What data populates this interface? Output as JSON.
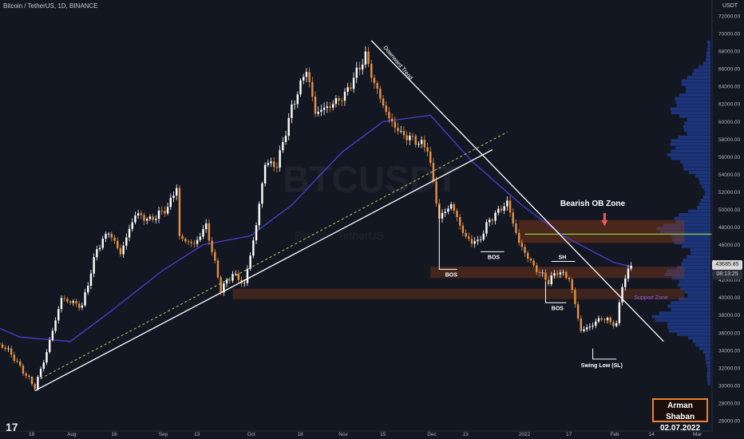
{
  "header": {
    "symbol": "Bitcoin / TetherUS, 1D, BINANCE",
    "currency": "USDT"
  },
  "signature": {
    "author": "Arman Shaban",
    "date": "02.07.2022"
  },
  "price_tags": {
    "last": "43685.85",
    "countdown": "08:13:25"
  },
  "logo": "17",
  "chart_data": {
    "type": "candlestick",
    "title": "",
    "y_range": [
      26000,
      74000
    ],
    "y_ticks": [
      26000,
      28000,
      30000,
      32000,
      34000,
      36000,
      38000,
      40000,
      42000,
      44000,
      46000,
      48000,
      50000,
      52000,
      54000,
      56000,
      58000,
      60000,
      62000,
      64000,
      66000,
      68000,
      70000,
      72000
    ],
    "x_ticks": [
      {
        "label": "19",
        "date": "2021-07-19"
      },
      {
        "label": "Aug",
        "date": "2021-08-01"
      },
      {
        "label": "16",
        "date": "2021-08-16"
      },
      {
        "label": "Sep",
        "date": "2021-09-01"
      },
      {
        "label": "13",
        "date": "2021-09-13"
      },
      {
        "label": "Oct",
        "date": "2021-10-01"
      },
      {
        "label": "18",
        "date": "2021-10-18"
      },
      {
        "label": "Nov",
        "date": "2021-11-01"
      },
      {
        "label": "15",
        "date": "2021-11-15"
      },
      {
        "label": "Dec",
        "date": "2021-12-01"
      },
      {
        "label": "13",
        "date": "2021-12-13"
      },
      {
        "label": "2022",
        "date": "2022-01-01"
      },
      {
        "label": "17",
        "date": "2022-01-17"
      },
      {
        "label": "Feb",
        "date": "2022-02-01"
      },
      {
        "label": "14",
        "date": "2022-02-14"
      },
      {
        "label": "Mar",
        "date": "2022-03-01"
      }
    ],
    "anchors": [
      [
        "2021-07-06",
        35000
      ],
      [
        "2021-07-11",
        34000
      ],
      [
        "2021-07-16",
        31600
      ],
      [
        "2021-07-20",
        29800
      ],
      [
        "2021-07-24",
        33800
      ],
      [
        "2021-07-29",
        39900
      ],
      [
        "2021-08-05",
        39000
      ],
      [
        "2021-08-10",
        45500
      ],
      [
        "2021-08-14",
        47500
      ],
      [
        "2021-08-18",
        45000
      ],
      [
        "2021-08-23",
        49500
      ],
      [
        "2021-08-28",
        48800
      ],
      [
        "2021-09-03",
        50200
      ],
      [
        "2021-09-06",
        52600
      ],
      [
        "2021-09-07",
        46800
      ],
      [
        "2021-09-12",
        46000
      ],
      [
        "2021-09-16",
        48200
      ],
      [
        "2021-09-21",
        40900
      ],
      [
        "2021-09-25",
        42700
      ],
      [
        "2021-09-29",
        41500
      ],
      [
        "2021-10-03",
        48200
      ],
      [
        "2021-10-06",
        55300
      ],
      [
        "2021-10-10",
        55000
      ],
      [
        "2021-10-15",
        61500
      ],
      [
        "2021-10-20",
        66000
      ],
      [
        "2021-10-23",
        61000
      ],
      [
        "2021-10-28",
        61800
      ],
      [
        "2021-11-02",
        63000
      ],
      [
        "2021-11-09",
        67500
      ],
      [
        "2021-11-12",
        64300
      ],
      [
        "2021-11-17",
        60300
      ],
      [
        "2021-11-21",
        58600
      ],
      [
        "2021-11-25",
        58000
      ],
      [
        "2021-11-30",
        57000
      ],
      [
        "2021-12-04",
        49000
      ],
      [
        "2021-12-08",
        50600
      ],
      [
        "2021-12-13",
        46700
      ],
      [
        "2021-12-17",
        46200
      ],
      [
        "2021-12-21",
        48800
      ],
      [
        "2021-12-27",
        50800
      ],
      [
        "2021-12-31",
        46200
      ],
      [
        "2022-01-05",
        43500
      ],
      [
        "2022-01-10",
        41800
      ],
      [
        "2022-01-13",
        43000
      ],
      [
        "2022-01-17",
        42200
      ],
      [
        "2022-01-21",
        36200
      ],
      [
        "2022-01-24",
        36700
      ],
      [
        "2022-01-28",
        37700
      ],
      [
        "2022-02-02",
        36900
      ],
      [
        "2022-02-04",
        41500
      ],
      [
        "2022-02-07",
        43685
      ]
    ],
    "moving_average": [
      [
        "2021-07-01",
        37500
      ],
      [
        "2021-07-15",
        35500
      ],
      [
        "2021-08-01",
        35000
      ],
      [
        "2021-08-15",
        38500
      ],
      [
        "2021-09-01",
        43000
      ],
      [
        "2021-09-15",
        46000
      ],
      [
        "2021-10-01",
        47000
      ],
      [
        "2021-10-15",
        50500
      ],
      [
        "2021-11-01",
        56500
      ],
      [
        "2021-11-15",
        60000
      ],
      [
        "2021-12-01",
        60700
      ],
      [
        "2021-12-15",
        55500
      ],
      [
        "2022-01-01",
        50500
      ],
      [
        "2022-01-15",
        47000
      ],
      [
        "2022-02-01",
        44000
      ],
      [
        "2022-02-07",
        43500
      ]
    ],
    "annotations": {
      "watermark": "BTCUSDT",
      "watermark_sub": "Bitcoin / TetherUS",
      "downward_trend": "Downward Trend",
      "bearish_ob_zone": "Bearish OB Zone",
      "support_zone": "Support Zone",
      "sh": "SH",
      "bos_1": "BOS",
      "bos_2": "BOS",
      "bos_3": "BOS",
      "swing_low": "Swing Low (SL)"
    },
    "colors": {
      "background": "#131722",
      "up": "#ffffff",
      "down": "#e8913f",
      "moving_average": "#4b3fd1",
      "zone": "#8c3b13",
      "green_line": "#8bd43d",
      "volume_profile": "#1e3a8a"
    }
  }
}
